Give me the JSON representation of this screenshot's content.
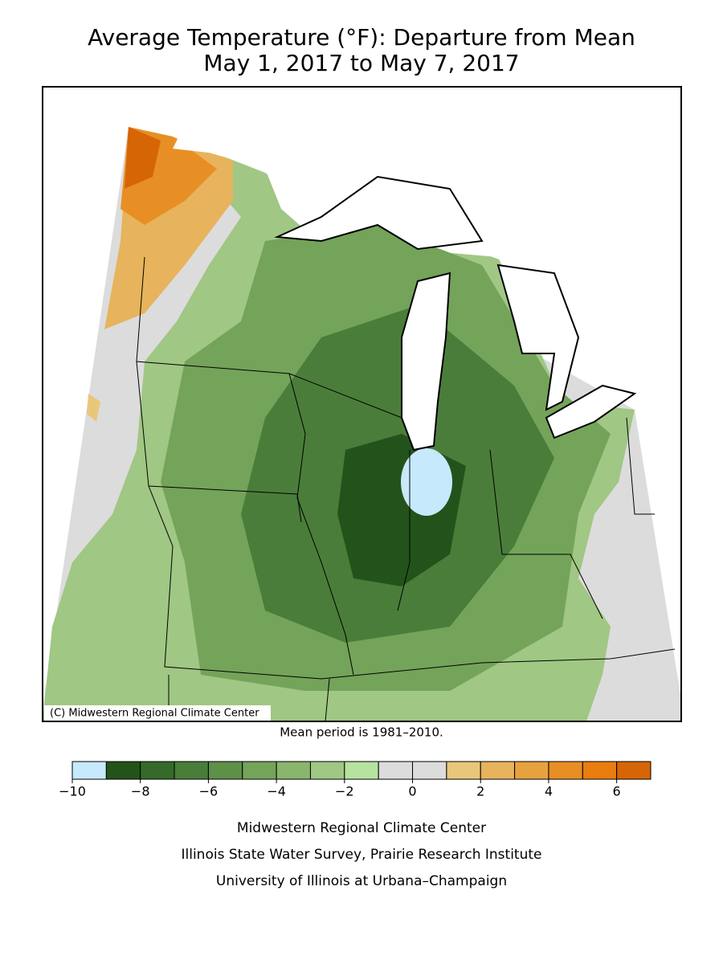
{
  "header": {
    "title": "Average Temperature (°F): Departure from Mean",
    "subtitle": "May 1, 2017 to May 7, 2017"
  },
  "map": {
    "credit": "(C) Midwestern Regional Climate Center",
    "note": "Mean period is 1981–2010."
  },
  "legend": {
    "range": [
      -10,
      7
    ],
    "colors": [
      "#c6e9fb",
      "#23531a",
      "#356a2a",
      "#4a7d3a",
      "#5e9048",
      "#74a35a",
      "#89b56c",
      "#a0c784",
      "#b6e3a0",
      "#dcdcdc",
      "#dcdcdc",
      "#e9c77a",
      "#e7b35c",
      "#e6a23f",
      "#e78f25",
      "#e97d0d",
      "#d66506"
    ],
    "ticks": [
      {
        "value": -10,
        "label": "−10"
      },
      {
        "value": -8,
        "label": "−8"
      },
      {
        "value": -6,
        "label": "−6"
      },
      {
        "value": -4,
        "label": "−4"
      },
      {
        "value": -2,
        "label": "−2"
      },
      0,
      2,
      4,
      6
    ]
  },
  "footer": {
    "lines": [
      "Midwestern Regional Climate Center",
      "Illinois State Water Survey, Prairie Research Institute",
      "University of Illinois at Urbana–Champaign"
    ]
  }
}
